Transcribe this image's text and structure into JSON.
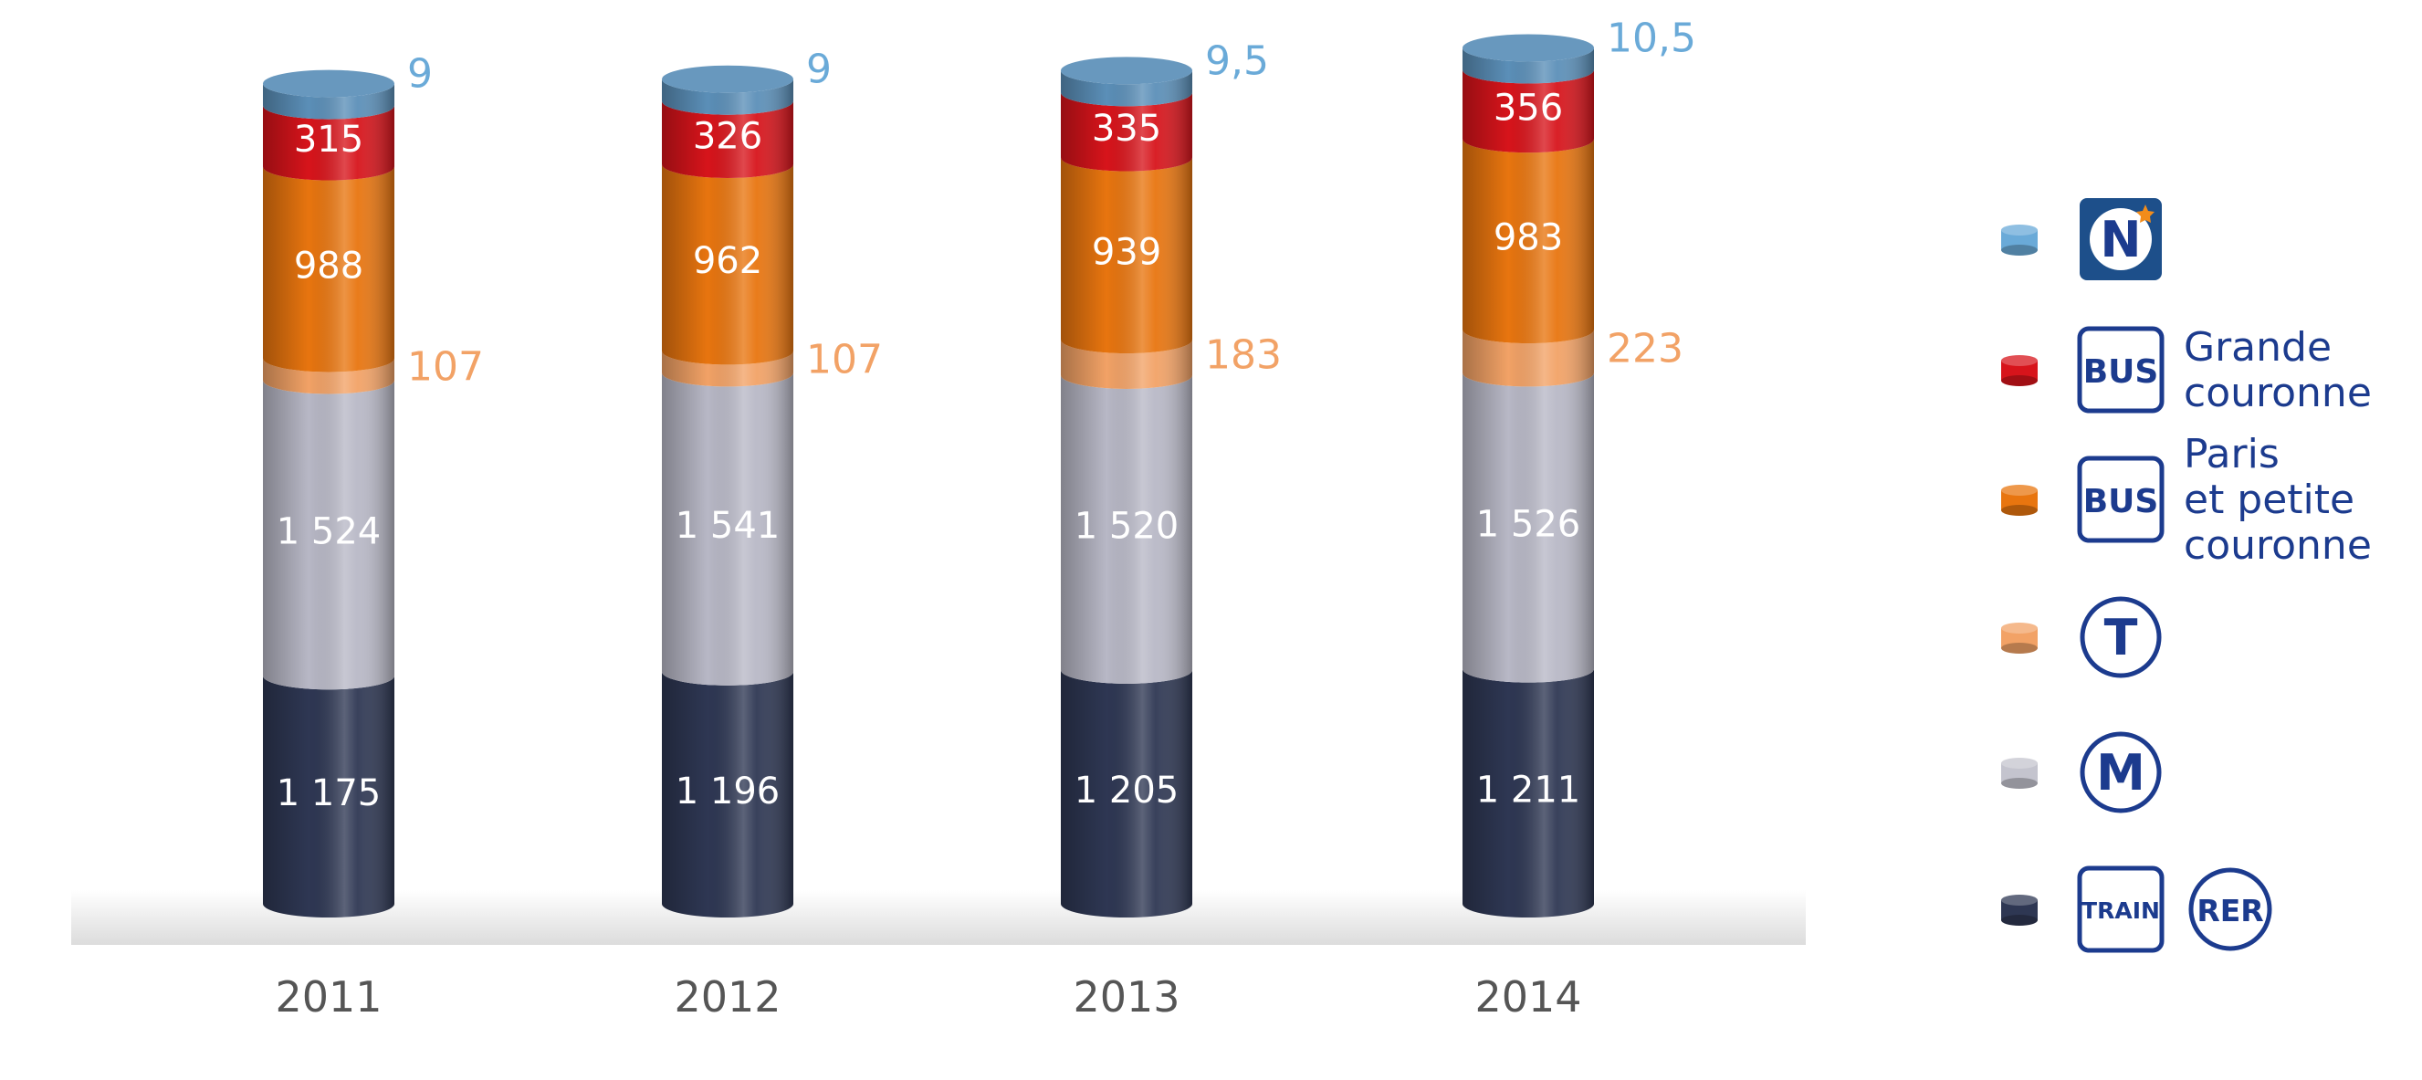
{
  "chart_data": {
    "type": "bar",
    "stacked": true,
    "categories": [
      "2011",
      "2012",
      "2013",
      "2014"
    ],
    "series": [
      {
        "key": "train_rer",
        "color": "#2e3753",
        "values": [
          1175,
          1196,
          1205,
          1211
        ],
        "labels": [
          "1 175",
          "1 196",
          "1 205",
          "1 211"
        ]
      },
      {
        "key": "metro",
        "color": "#b8b8c6",
        "values": [
          1524,
          1541,
          1520,
          1526
        ],
        "labels": [
          "1 524",
          "1 541",
          "1 520",
          "1 526"
        ]
      },
      {
        "key": "tram",
        "color": "#f2a266",
        "values": [
          107,
          107,
          183,
          223
        ],
        "labels": [
          "107",
          "107",
          "183",
          "223"
        ]
      },
      {
        "key": "bus_paris",
        "color": "#e8750f",
        "values": [
          988,
          962,
          939,
          983
        ],
        "labels": [
          "988",
          "962",
          "939",
          "983"
        ]
      },
      {
        "key": "bus_grande",
        "color": "#d7141b",
        "values": [
          315,
          326,
          335,
          356
        ],
        "labels": [
          "315",
          "326",
          "335",
          "356"
        ]
      },
      {
        "key": "noctilien",
        "color": "#5b8fb8",
        "values": [
          9,
          9,
          9.5,
          10.5
        ],
        "labels": [
          "9",
          "9",
          "9,5",
          "10,5"
        ]
      }
    ],
    "legend": {
      "position": "right",
      "items": [
        {
          "icon": "noctilien-n-icon",
          "color": "#6aaad8",
          "text_lines": []
        },
        {
          "icon": "bus-icon",
          "badge": "BUS",
          "color": "#d7141b",
          "text_lines": [
            "Grande",
            "couronne"
          ]
        },
        {
          "icon": "bus-icon",
          "badge": "BUS",
          "color": "#e8750f",
          "text_lines": [
            "Paris",
            "et petite",
            "couronne"
          ]
        },
        {
          "icon": "tram-t-icon",
          "badge": "T",
          "color": "#f2a266",
          "text_lines": []
        },
        {
          "icon": "metro-m-icon",
          "badge": "M",
          "color": "#c4c4ce",
          "text_lines": []
        },
        {
          "icon": "train-rer-icon",
          "badge": "TRAIN",
          "badge2": "RER",
          "color": "#2e3753",
          "text_lines": []
        }
      ]
    },
    "label_colors": {
      "tram": "#f2a266",
      "noctilien": "#6aaad8"
    },
    "grid": false
  }
}
